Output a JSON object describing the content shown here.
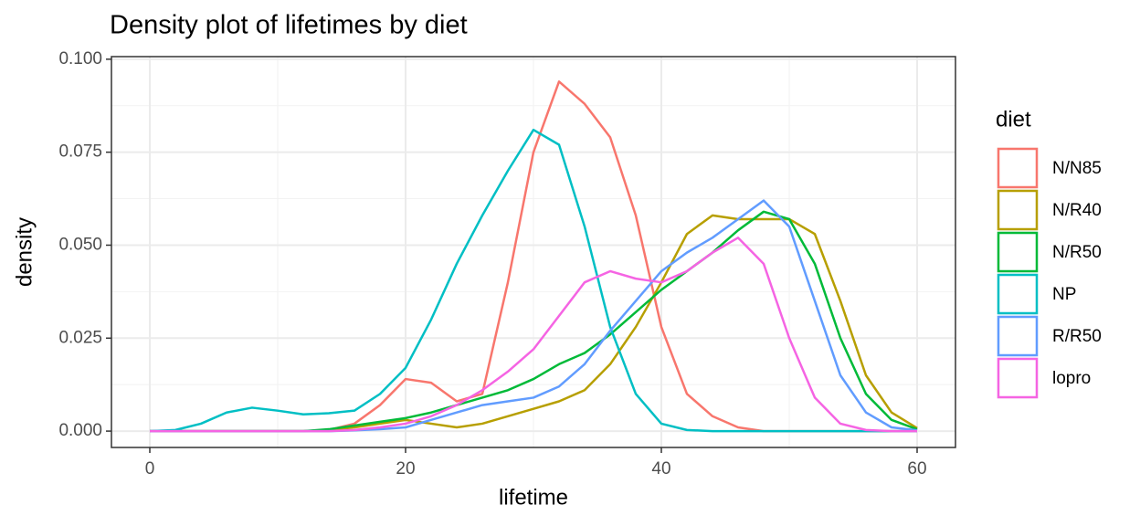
{
  "chart_data": {
    "type": "line",
    "title": "Density plot of lifetimes by diet",
    "x_label": "lifetime",
    "y_label": "density",
    "legend_title": "diet",
    "legend": "right",
    "grid": true,
    "x": [
      0,
      2,
      4,
      6,
      8,
      10,
      12,
      14,
      16,
      18,
      20,
      22,
      24,
      26,
      28,
      30,
      32,
      34,
      36,
      38,
      40,
      42,
      44,
      46,
      48,
      50,
      52,
      54,
      56,
      58,
      60
    ],
    "series": [
      {
        "name": "N/N85",
        "color": "#F8766D",
        "values": [
          0,
          0,
          0,
          0,
          0,
          0,
          0,
          0.0003,
          0.002,
          0.007,
          0.014,
          0.013,
          0.008,
          0.01,
          0.04,
          0.075,
          0.094,
          0.088,
          0.079,
          0.058,
          0.028,
          0.01,
          0.004,
          0.001,
          0,
          0,
          0,
          0,
          0,
          0,
          0
        ]
      },
      {
        "name": "N/R40",
        "color": "#B79F00",
        "values": [
          0,
          0,
          0,
          0,
          0,
          0,
          0,
          0.0003,
          0.001,
          0.002,
          0.003,
          0.002,
          0.001,
          0.002,
          0.004,
          0.006,
          0.008,
          0.011,
          0.018,
          0.028,
          0.04,
          0.053,
          0.058,
          0.057,
          0.057,
          0.057,
          0.053,
          0.035,
          0.015,
          0.005,
          0.0008
        ]
      },
      {
        "name": "N/R50",
        "color": "#00BA38",
        "values": [
          0,
          0,
          0,
          0,
          0,
          0,
          0,
          0.0005,
          0.0015,
          0.0025,
          0.0035,
          0.005,
          0.007,
          0.009,
          0.011,
          0.014,
          0.018,
          0.021,
          0.026,
          0.032,
          0.038,
          0.043,
          0.048,
          0.054,
          0.059,
          0.057,
          0.045,
          0.025,
          0.01,
          0.003,
          0.0005
        ]
      },
      {
        "name": "NP",
        "color": "#00BFC4",
        "values": [
          0,
          0.0003,
          0.002,
          0.005,
          0.0063,
          0.0055,
          0.0045,
          0.0048,
          0.0055,
          0.01,
          0.017,
          0.03,
          0.045,
          0.058,
          0.07,
          0.081,
          0.077,
          0.055,
          0.028,
          0.01,
          0.002,
          0.0003,
          0,
          0,
          0,
          0,
          0,
          0,
          0,
          0,
          0
        ]
      },
      {
        "name": "R/R50",
        "color": "#619CFF",
        "values": [
          0,
          0,
          0,
          0,
          0,
          0,
          0,
          0,
          0.0002,
          0.0005,
          0.001,
          0.003,
          0.005,
          0.007,
          0.008,
          0.009,
          0.012,
          0.018,
          0.027,
          0.035,
          0.043,
          0.048,
          0.052,
          0.057,
          0.062,
          0.055,
          0.035,
          0.015,
          0.005,
          0.001,
          0.0002
        ]
      },
      {
        "name": "lopro",
        "color": "#F564E3",
        "values": [
          0,
          0,
          0,
          0,
          0,
          0,
          0,
          0,
          0.0003,
          0.001,
          0.002,
          0.004,
          0.007,
          0.011,
          0.016,
          0.022,
          0.031,
          0.04,
          0.043,
          0.041,
          0.04,
          0.043,
          0.048,
          0.052,
          0.045,
          0.025,
          0.009,
          0.002,
          0.0003,
          0,
          0
        ]
      }
    ],
    "xlim": [
      -3,
      63
    ],
    "ylim": [
      -0.0044,
      0.1007
    ],
    "xticks": [
      0,
      20,
      40,
      60
    ],
    "yticks": [
      {
        "value": 0,
        "label": "0.000"
      },
      {
        "value": 0.025,
        "label": "0.025"
      },
      {
        "value": 0.05,
        "label": "0.050"
      },
      {
        "value": 0.075,
        "label": "0.075"
      },
      {
        "value": 0.1,
        "label": "0.100"
      }
    ]
  }
}
